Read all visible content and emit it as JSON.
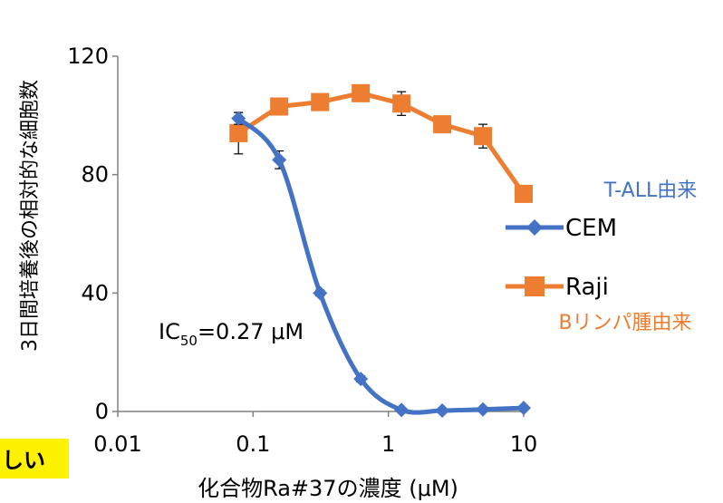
{
  "chart_data": {
    "type": "line",
    "xscale": "log",
    "xlim": [
      0.01,
      10
    ],
    "ylim": [
      0,
      120
    ],
    "x_ticks": [
      "0.01",
      "0.1",
      "1",
      "10"
    ],
    "y_ticks": [
      "0",
      "40",
      "80",
      "120"
    ],
    "xlabel": "化合物Ra#37の濃度 (μM)",
    "ylabel": "3日間培養後の相対的な細胞数",
    "series": [
      {
        "name": "CEM",
        "color": "#4472c4",
        "marker": "diamond",
        "smooth": true,
        "x": [
          0.078,
          0.156,
          0.3125,
          0.625,
          1.25,
          2.5,
          5,
          10
        ],
        "y": [
          99,
          85,
          40,
          11,
          0.5,
          0.3,
          0.7,
          1.2
        ],
        "err": [
          2,
          3,
          1,
          1,
          0.5,
          0.3,
          0.5,
          0.5
        ]
      },
      {
        "name": "Raji",
        "color": "#ed7d31",
        "marker": "square",
        "smooth": false,
        "x": [
          0.078,
          0.156,
          0.3125,
          0.625,
          1.25,
          2.5,
          5,
          10
        ],
        "y": [
          94,
          103,
          104.5,
          107.5,
          104,
          97,
          93,
          73.5
        ],
        "err": [
          7,
          2,
          2,
          1,
          4,
          1,
          4,
          1
        ]
      }
    ],
    "legend": [
      {
        "label": "CEM",
        "note": "T-ALL由来"
      },
      {
        "label": "Raji",
        "note": "Bリンパ腫由来"
      }
    ],
    "annotation": {
      "text": "IC",
      "sub": "50",
      "rest": "=0.27 μM"
    }
  },
  "highlight": {
    "text": "しい",
    "color": "#fff200"
  }
}
